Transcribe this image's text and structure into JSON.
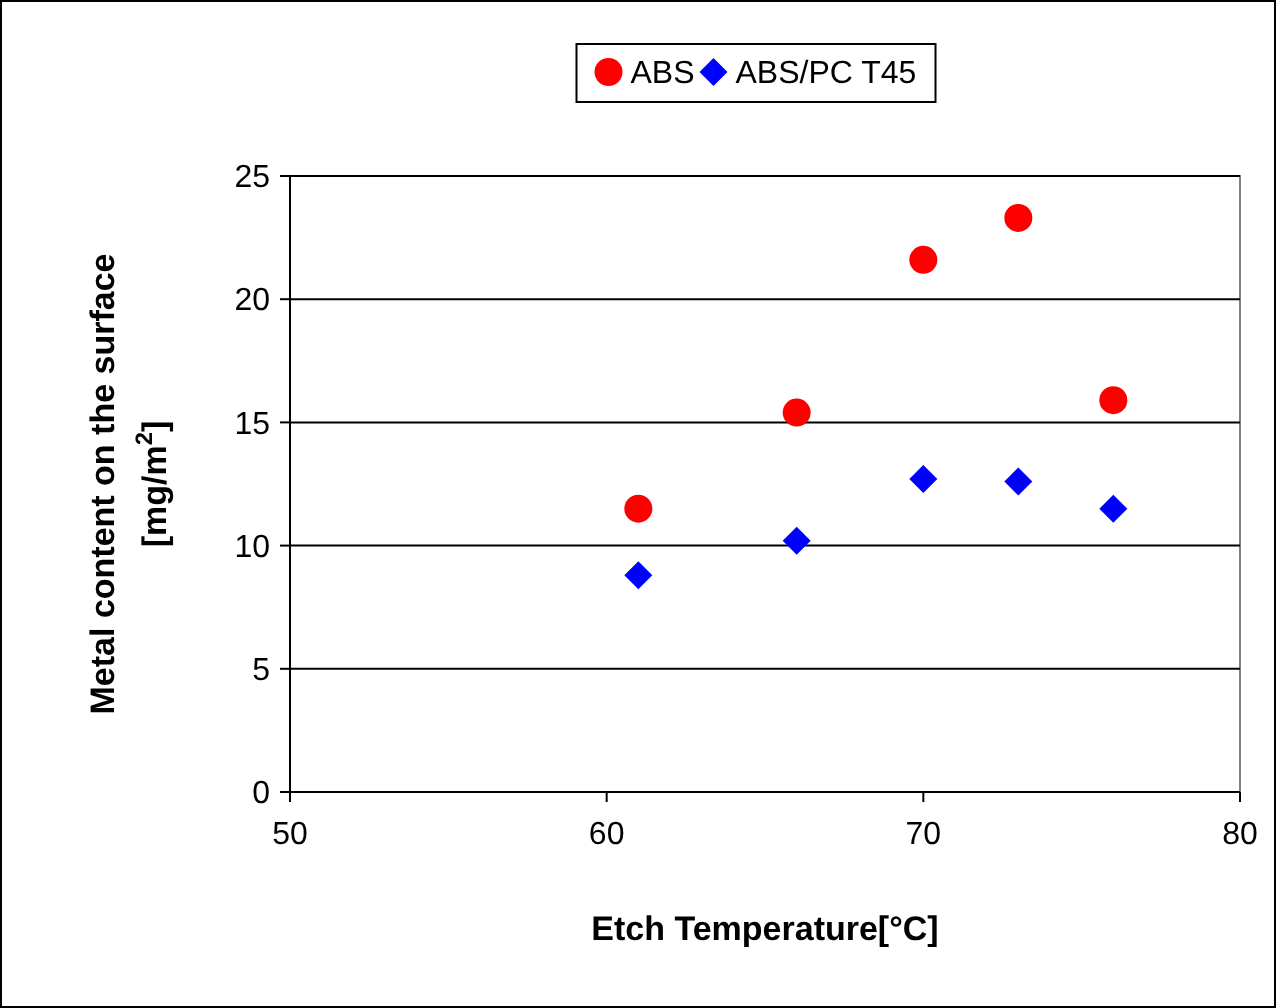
{
  "chart_data": {
    "type": "scatter",
    "xlabel": "Etch Temperature[°C]",
    "ylabel": "Metal content on the surface [mg/m$^{2}$]",
    "x": [
      61,
      66,
      70,
      73,
      76
    ],
    "series": [
      {
        "name": "ABS",
        "color": "#ff0000",
        "marker": "circle",
        "values": [
          11.5,
          15.4,
          21.6,
          23.3,
          15.9
        ]
      },
      {
        "name": "ABS/PC T45",
        "color": "#0000ff",
        "marker": "diamond",
        "values": [
          8.8,
          10.2,
          12.7,
          12.6,
          11.5
        ]
      }
    ],
    "xlim": [
      50,
      80
    ],
    "xticks": [
      50,
      60,
      70,
      80
    ],
    "ylim": [
      0,
      25
    ],
    "yticks": [
      0,
      5,
      10,
      15,
      20,
      25
    ],
    "grid": "y",
    "legend": "top"
  }
}
